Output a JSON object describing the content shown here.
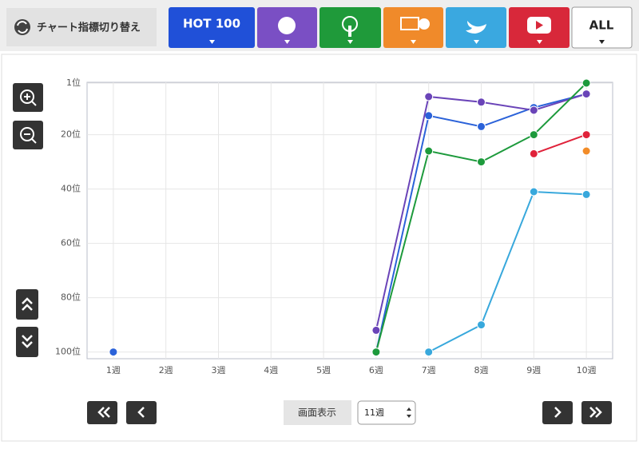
{
  "ui": {
    "switch_label": "チャート指標切り替え",
    "tabs": [
      "HOT 100",
      "ALL"
    ],
    "display_label": "画面表示",
    "display_select": "11週"
  },
  "chart_data": {
    "type": "line",
    "categories": [
      "1週",
      "2週",
      "3週",
      "4週",
      "5週",
      "6週",
      "7週",
      "8週",
      "9週",
      "10週"
    ],
    "ylim": [
      1,
      101
    ],
    "inverted": true,
    "grid": true,
    "yticks": [
      {
        "value": 1,
        "label": "1位"
      },
      {
        "value": 20,
        "label": "20位"
      },
      {
        "value": 40,
        "label": "40位"
      },
      {
        "value": 60,
        "label": "60位"
      },
      {
        "value": 80,
        "label": "80位"
      },
      {
        "value": 100,
        "label": "100位"
      }
    ],
    "series": [
      {
        "color": "#2b62d9",
        "values": [
          100,
          null,
          null,
          null,
          null,
          100,
          13,
          17,
          10,
          5
        ]
      },
      {
        "color": "#6a44b8",
        "values": [
          null,
          null,
          null,
          null,
          null,
          92,
          6,
          8,
          11,
          5
        ]
      },
      {
        "color": "#1d9a3c",
        "values": [
          null,
          null,
          null,
          null,
          null,
          100,
          26,
          30,
          20,
          1
        ]
      },
      {
        "color": "#f28c28",
        "values": [
          null,
          null,
          null,
          null,
          null,
          null,
          null,
          null,
          null,
          26
        ]
      },
      {
        "color": "#38a8dc",
        "values": [
          null,
          null,
          null,
          null,
          null,
          null,
          100,
          90,
          41,
          42
        ]
      },
      {
        "color": "#e0223a",
        "values": [
          null,
          null,
          null,
          null,
          null,
          null,
          null,
          null,
          27,
          20
        ]
      }
    ]
  }
}
